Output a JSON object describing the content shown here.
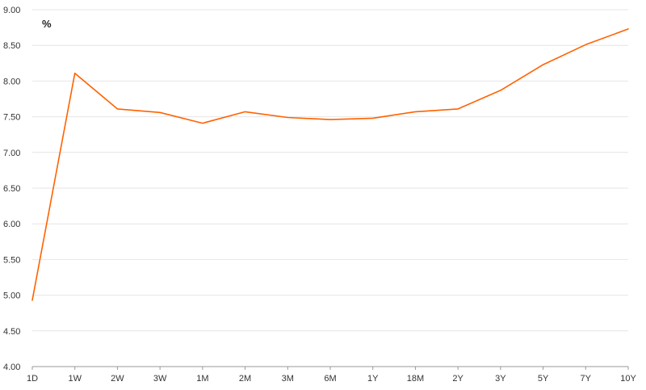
{
  "chart_data": {
    "type": "line",
    "title": "",
    "xlabel": "",
    "ylabel": "%",
    "categories": [
      "1D",
      "1W",
      "2W",
      "3W",
      "1M",
      "2M",
      "3M",
      "6M",
      "1Y",
      "18M",
      "2Y",
      "3Y",
      "5Y",
      "7Y",
      "10Y"
    ],
    "series": [
      {
        "values": [
          4.93,
          8.11,
          7.61,
          7.56,
          7.41,
          7.57,
          7.49,
          7.46,
          7.48,
          7.57,
          7.61,
          7.87,
          8.23,
          8.51,
          8.73
        ]
      }
    ],
    "ylim": [
      4.0,
      9.0
    ],
    "yticks": [
      "4.00",
      "4.50",
      "5.00",
      "5.50",
      "6.00",
      "6.50",
      "7.00",
      "7.50",
      "8.00",
      "8.50",
      "9.00"
    ],
    "grid": true,
    "legend": "none",
    "colors": {
      "line": "#ff6200",
      "grid": "#e6e6e6",
      "axis": "#999999",
      "text": "#333333"
    }
  }
}
